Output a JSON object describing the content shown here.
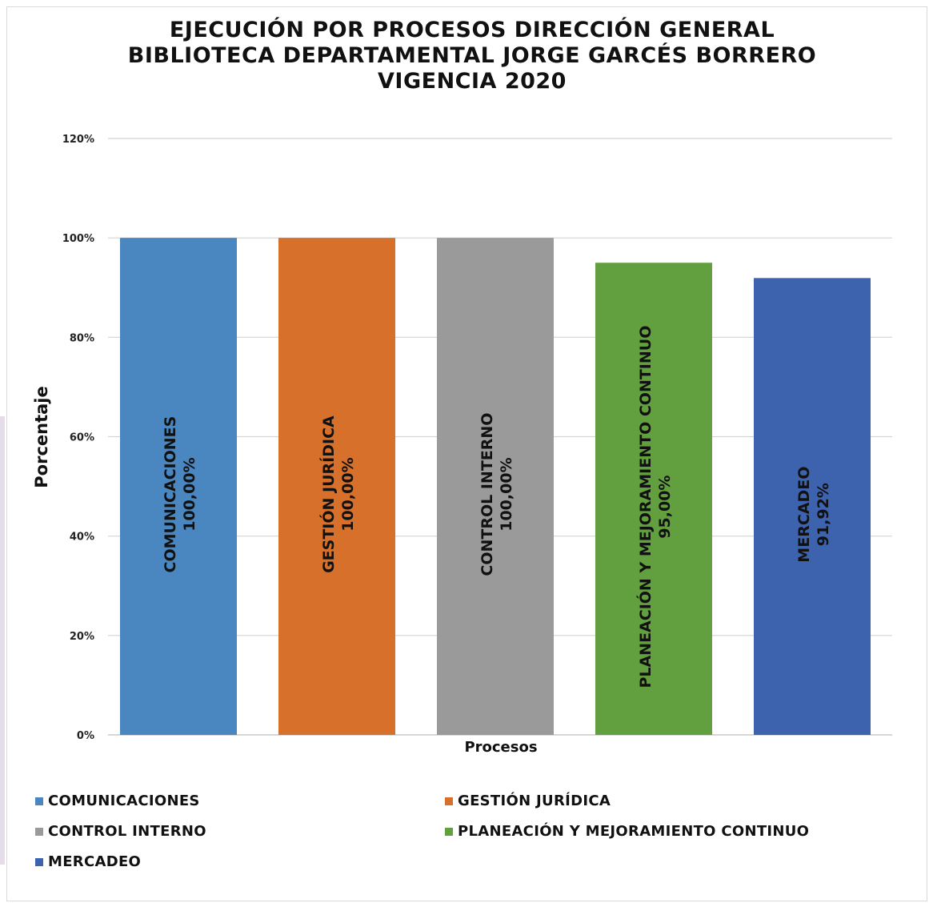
{
  "chart_data": {
    "type": "bar",
    "title": [
      "EJECUCIÓN POR PROCESOS DIRECCIÓN GENERAL",
      "BIBLIOTECA DEPARTAMENTAL JORGE GARCÉS BORRERO",
      "VIGENCIA 2020"
    ],
    "xlabel": "Procesos",
    "ylabel": "Porcentaje",
    "ylim": [
      0,
      120
    ],
    "yticks": [
      "0%",
      "20%",
      "40%",
      "60%",
      "80%",
      "100%",
      "120%"
    ],
    "grid": true,
    "legend_position": "bottom",
    "series": [
      {
        "name": "COMUNICACIONES",
        "value": 100.0,
        "label": "100,00%",
        "color": "#4a86c0"
      },
      {
        "name": "GESTIÓN JURÍDICA",
        "value": 100.0,
        "label": "100,00%",
        "color": "#d7702a"
      },
      {
        "name": "CONTROL INTERNO",
        "value": 100.0,
        "label": "100,00%",
        "color": "#9a9a9a"
      },
      {
        "name": "PLANEACIÓN Y MEJORAMIENTO CONTINUO",
        "value": 95.0,
        "label": "95,00%",
        "color": "#62a03f"
      },
      {
        "name": "MERCADEO",
        "value": 91.92,
        "label": "91,92%",
        "color": "#3d62ae"
      }
    ]
  }
}
